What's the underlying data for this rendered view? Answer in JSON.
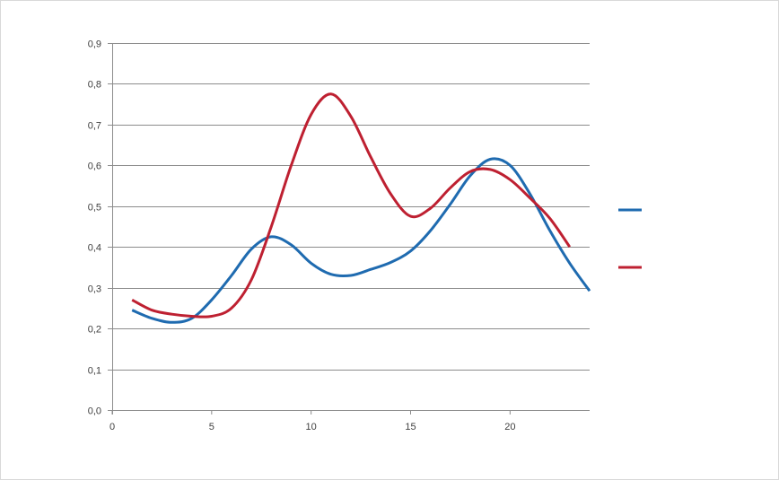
{
  "chart_data": {
    "type": "line",
    "title": "",
    "xlabel": "",
    "ylabel": "",
    "xlim": [
      0,
      24
    ],
    "ylim": [
      0,
      0.9
    ],
    "x_ticks": [
      0,
      5,
      10,
      15,
      20
    ],
    "x_tick_labels": [
      "0",
      "5",
      "10",
      "15",
      "20"
    ],
    "y_ticks": [
      0,
      0.1,
      0.2,
      0.3,
      0.4,
      0.5,
      0.6,
      0.7,
      0.8,
      0.9
    ],
    "y_tick_labels": [
      "0,0",
      "0,1",
      "0,2",
      "0,3",
      "0,4",
      "0,5",
      "0,6",
      "0,7",
      "0,8",
      "0,9"
    ],
    "grid": "horizontal",
    "legend_position": "right",
    "smooth": true,
    "series": [
      {
        "color": "#1f6bb0",
        "x": [
          1,
          2,
          3,
          4,
          5,
          6,
          7,
          8,
          9,
          10,
          11,
          12,
          13,
          14,
          15,
          16,
          17,
          18,
          19,
          20,
          21,
          22,
          23,
          24
        ],
        "values": [
          0.245,
          0.225,
          0.215,
          0.225,
          0.27,
          0.33,
          0.395,
          0.425,
          0.405,
          0.36,
          0.333,
          0.33,
          0.345,
          0.362,
          0.39,
          0.44,
          0.505,
          0.575,
          0.615,
          0.6,
          0.53,
          0.44,
          0.36,
          0.292
        ]
      },
      {
        "color": "#be2031",
        "x": [
          1,
          2,
          3,
          4,
          5,
          6,
          7,
          8,
          9,
          10,
          11,
          12,
          13,
          14,
          15,
          16,
          17,
          18,
          19,
          20,
          21,
          22,
          23
        ],
        "values": [
          0.27,
          0.245,
          0.235,
          0.23,
          0.23,
          0.25,
          0.32,
          0.45,
          0.6,
          0.725,
          0.775,
          0.72,
          0.62,
          0.53,
          0.475,
          0.495,
          0.545,
          0.585,
          0.59,
          0.565,
          0.52,
          0.47,
          0.4
        ]
      }
    ]
  }
}
